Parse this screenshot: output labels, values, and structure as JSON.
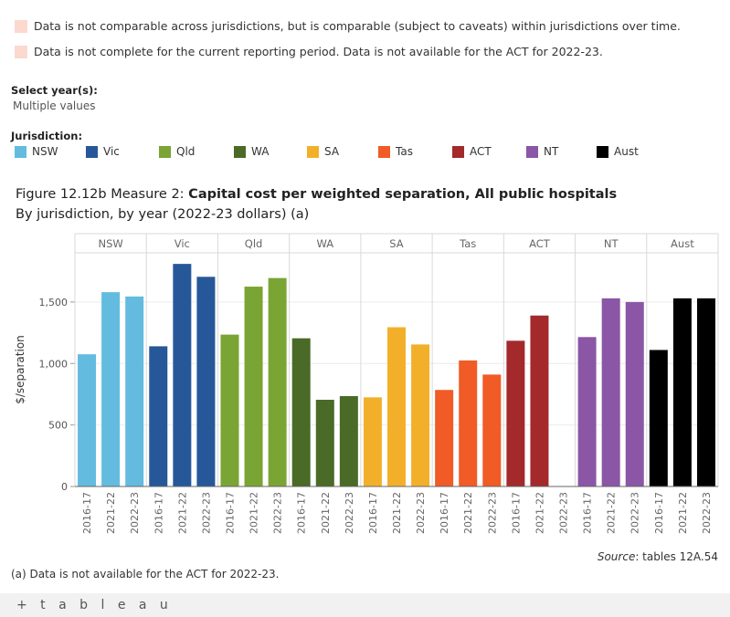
{
  "notes": [
    "Data is not comparable across jurisdictions, but is comparable (subject to caveats) within jurisdictions over time.",
    "Data is not complete for the current reporting period. Data is not available for the ACT for 2022-23."
  ],
  "filters": {
    "select_year_label": "Select year(s):",
    "select_year_value": "Multiple values",
    "jurisdiction_label": "Jurisdiction:"
  },
  "legend": [
    {
      "name": "NSW",
      "color": "#63bcdf"
    },
    {
      "name": "Vic",
      "color": "#265899"
    },
    {
      "name": "Qld",
      "color": "#7aa434"
    },
    {
      "name": "WA",
      "color": "#4a6a27"
    },
    {
      "name": "SA",
      "color": "#f2b02a"
    },
    {
      "name": "Tas",
      "color": "#f05b26"
    },
    {
      "name": "ACT",
      "color": "#a4292b"
    },
    {
      "name": "NT",
      "color": "#8a56a5"
    },
    {
      "name": "Aust",
      "color": "#000000"
    }
  ],
  "figure": {
    "title_prefix": "Figure 12.12b Measure 2: ",
    "title_main": "Capital cost per weighted separation, All public hospitals",
    "subtitle": "By jurisdiction, by year (2022-23 dollars) (a)"
  },
  "chart_data": {
    "type": "bar",
    "ylabel": "$/separation",
    "ylim": [
      0,
      1900
    ],
    "yticks": [
      0,
      500,
      1000,
      1500
    ],
    "ytick_labels": [
      "0",
      "500",
      "1,000",
      "1,500"
    ],
    "years": [
      "2016-17",
      "2021-22",
      "2022-23"
    ],
    "grid": true,
    "series": [
      {
        "name": "NSW",
        "color": "#63bcdf",
        "values": [
          1075,
          1580,
          1545
        ]
      },
      {
        "name": "Vic",
        "color": "#265899",
        "values": [
          1140,
          1810,
          1705
        ]
      },
      {
        "name": "Qld",
        "color": "#7aa434",
        "values": [
          1235,
          1625,
          1695
        ]
      },
      {
        "name": "WA",
        "color": "#4a6a27",
        "values": [
          1205,
          705,
          735
        ]
      },
      {
        "name": "SA",
        "color": "#f2b02a",
        "values": [
          725,
          1295,
          1155
        ]
      },
      {
        "name": "Tas",
        "color": "#f05b26",
        "values": [
          785,
          1025,
          910
        ]
      },
      {
        "name": "ACT",
        "color": "#a4292b",
        "values": [
          1185,
          1390,
          null
        ]
      },
      {
        "name": "NT",
        "color": "#8a56a5",
        "values": [
          1215,
          1530,
          1500
        ]
      },
      {
        "name": "Aust",
        "color": "#000000",
        "values": [
          1110,
          1530,
          1530
        ]
      }
    ]
  },
  "source": {
    "label": "Source",
    "text": ": tables 12A.54"
  },
  "footnote": "(a) Data is not available for the ACT for 2022-23.",
  "footer": {
    "logo_text": "+ t a b l e a u"
  }
}
